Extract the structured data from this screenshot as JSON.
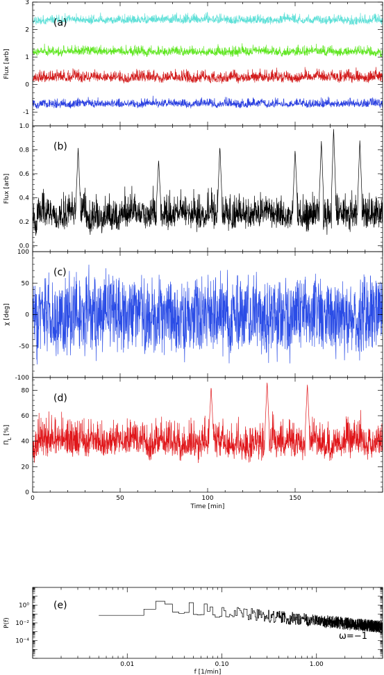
{
  "chart_data": [
    {
      "id": "a",
      "type": "line",
      "panel_label": "(a)",
      "xlabel": "",
      "ylabel": "Flux [arb]",
      "xlim": [
        0,
        200
      ],
      "ylim": [
        -1.5,
        3
      ],
      "yticks": [
        -1,
        0,
        1,
        2,
        3
      ],
      "series": [
        {
          "color": "#5fe0d8",
          "baseline": 2.3,
          "amplitude": 0.32,
          "seed": 11
        },
        {
          "color": "#5ee61f",
          "baseline": 1.15,
          "amplitude": 0.34,
          "seed": 23
        },
        {
          "color": "#d21a1a",
          "baseline": 0.2,
          "amplitude": 0.42,
          "seed": 37
        },
        {
          "color": "#2a3fe0",
          "baseline": -0.75,
          "amplitude": 0.3,
          "seed": 51
        }
      ]
    },
    {
      "id": "b",
      "type": "line",
      "panel_label": "(b)",
      "xlabel": "",
      "ylabel": "Flux [arb]",
      "xlim": [
        0,
        200
      ],
      "ylim": [
        -0.05,
        1.0
      ],
      "yticks": [
        0.0,
        0.2,
        0.4,
        0.6,
        0.8,
        1.0
      ],
      "ytick_labels": [
        "0.0",
        "0.2",
        "0.4",
        "0.6",
        "0.8",
        "1.0"
      ],
      "series": [
        {
          "color": "#000000",
          "baseline": 0.22,
          "amplitude": 0.28,
          "seed": 67,
          "peaks": [
            [
              26,
              0.82
            ],
            [
              72,
              0.72
            ],
            [
              107,
              0.83
            ],
            [
              150,
              0.8
            ],
            [
              165,
              0.88
            ],
            [
              172,
              0.98
            ],
            [
              187,
              0.88
            ]
          ]
        }
      ]
    },
    {
      "id": "c",
      "type": "line",
      "panel_label": "(c)",
      "xlabel": "",
      "ylabel": "χ [deg]",
      "xlim": [
        0,
        200
      ],
      "ylim": [
        -100,
        100
      ],
      "yticks": [
        -100,
        -50,
        0,
        50,
        100
      ],
      "series": [
        {
          "color": "#2a4ce6",
          "baseline": 0,
          "amplitude": 90,
          "seed": 83
        }
      ]
    },
    {
      "id": "d",
      "type": "line",
      "panel_label": "(d)",
      "xlabel": "Time [min]",
      "ylabel": "Π_L [%]",
      "xlim": [
        0,
        200
      ],
      "ylim": [
        0,
        90
      ],
      "yticks": [
        0,
        20,
        40,
        60,
        80
      ],
      "xticks": [
        0,
        50,
        100,
        150
      ],
      "series": [
        {
          "color": "#e0161a",
          "baseline": 35,
          "amplitude": 28,
          "seed": 97,
          "peaks": [
            [
              102,
              83
            ],
            [
              134,
              87
            ],
            [
              157,
              85
            ]
          ]
        }
      ]
    },
    {
      "id": "e",
      "type": "line",
      "panel_label": "(e)",
      "xlabel": "f  [1/min]",
      "ylabel": "P(f)",
      "xscale": "log",
      "yscale": "log",
      "xlim": [
        0.001,
        5
      ],
      "ylim": [
        1e-06,
        100
      ],
      "xticks": [
        0.01,
        0.1,
        1.0
      ],
      "xtick_labels": [
        "0.01",
        "0.10",
        "1.00"
      ],
      "yticks": [
        0.0001,
        0.01,
        1
      ],
      "ytick_labels": [
        "10⁻⁴",
        "10⁻²",
        "10⁰"
      ],
      "annotation": "ω=−1",
      "series": [
        {
          "color": "#000000",
          "slope": -1,
          "seed": 113
        }
      ]
    }
  ]
}
